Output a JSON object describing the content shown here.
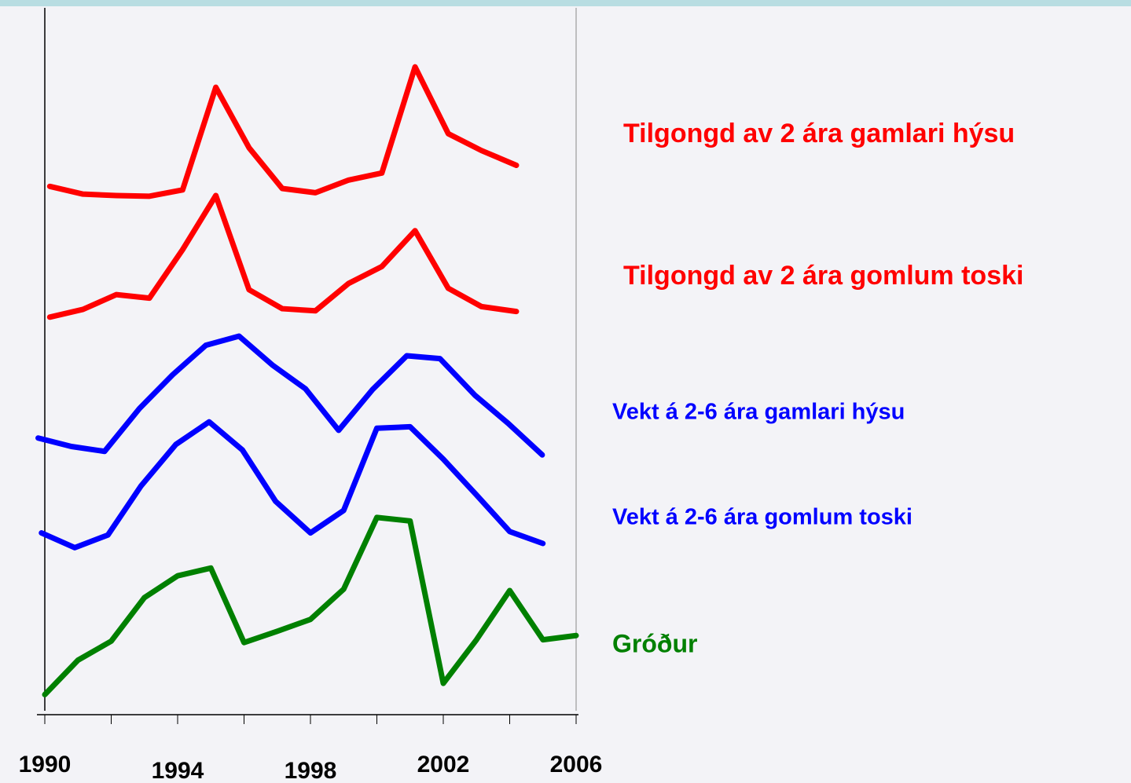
{
  "chart_data": {
    "type": "line",
    "xlim": [
      1990,
      2006
    ],
    "xticks": [
      1990,
      1994,
      1998,
      2002,
      2006
    ],
    "xminor_ticks": [
      1992,
      1996,
      2000,
      2004
    ],
    "ylim": [
      0,
      100
    ],
    "series": [
      {
        "name": "Tilgongd av 2 ára gamlari hýsu",
        "color": "#ff0000",
        "x": [
          1990.15,
          1991.15,
          1992.15,
          1993.15,
          1994.15,
          1995.15,
          1996.15,
          1997.15,
          1998.15,
          1999.15,
          2000.15,
          2001.15,
          2002.15,
          2003.15,
          2004.2
        ],
        "values": [
          74.6,
          73.5,
          73.3,
          73.2,
          74.1,
          88.7,
          80.1,
          74.3,
          73.7,
          75.5,
          76.5,
          91.6,
          82.1,
          79.7,
          77.6
        ]
      },
      {
        "name": "Tilgongd av 2 ára gomlum toski",
        "color": "#ff0000",
        "x": [
          1990.15,
          1991.15,
          1992.15,
          1993.15,
          1994.15,
          1995.15,
          1996.15,
          1997.15,
          1998.15,
          1999.15,
          2000.15,
          2001.15,
          2002.15,
          2003.15,
          2004.2
        ],
        "values": [
          56.0,
          57.1,
          59.2,
          58.7,
          65.6,
          73.3,
          59.9,
          57.2,
          56.9,
          60.8,
          63.2,
          68.3,
          60.1,
          57.5,
          56.8
        ]
      },
      {
        "name": "Vekt á 2-6 ára gamlari hýsu",
        "color": "#0000ff",
        "x": [
          1989.8,
          1990.8,
          1991.8,
          1992.85,
          1993.85,
          1994.85,
          1995.85,
          1996.85,
          1997.85,
          1998.85,
          1999.87,
          2000.9,
          2001.9,
          2002.95,
          2003.95,
          2004.98
        ],
        "values": [
          38.8,
          37.6,
          36.9,
          43.0,
          47.8,
          52.0,
          53.3,
          49.2,
          45.8,
          39.9,
          45.7,
          50.5,
          50.1,
          44.9,
          40.9,
          36.4
        ]
      },
      {
        "name": "Vekt á 2-6 ára gomlum toski",
        "color": "#0000ff",
        "x": [
          1989.9,
          1990.9,
          1991.9,
          1992.9,
          1993.95,
          1994.95,
          1995.95,
          1996.95,
          1998,
          1999,
          2000,
          2001,
          2002,
          2003,
          2004,
          2005
        ],
        "values": [
          25.3,
          23.2,
          25.0,
          32.0,
          37.9,
          41.1,
          37.1,
          29.8,
          25.3,
          28.5,
          40.2,
          40.4,
          35.8,
          30.7,
          25.5,
          23.8
        ]
      },
      {
        "name": "Gróður",
        "color": "#008000",
        "x": [
          1990,
          1991,
          1992,
          1993,
          1994,
          1995,
          1996,
          1997,
          1998,
          1999,
          2000,
          2001,
          2002,
          2003,
          2004,
          2005,
          2006
        ],
        "values": [
          2.3,
          7.2,
          9.9,
          16.1,
          19.2,
          20.3,
          9.7,
          11.3,
          13.0,
          17.3,
          27.5,
          27.0,
          3.9,
          10.1,
          17.1,
          10.1,
          10.7
        ]
      }
    ]
  }
}
